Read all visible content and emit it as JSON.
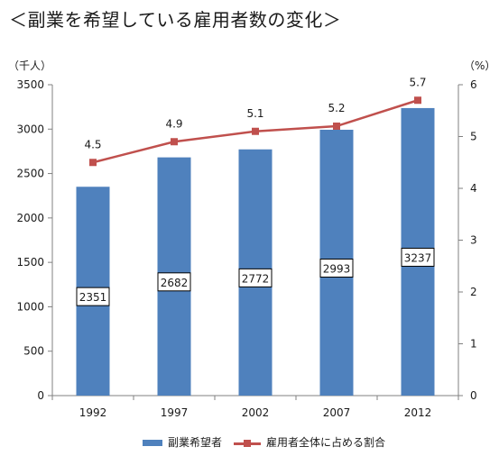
{
  "title": "＜副業を希望している雇用者数の変化＞",
  "left_unit": "（千人）",
  "right_unit": "（%）",
  "colors": {
    "bar": "#4f81bd",
    "line": "#c0504d",
    "axis": "#808080"
  },
  "chart_data": {
    "type": "bar",
    "categories": [
      "1992",
      "1997",
      "2002",
      "2007",
      "2012"
    ],
    "series": [
      {
        "name": "副業希望者",
        "type": "bar",
        "axis": "left",
        "values": [
          2351,
          2682,
          2772,
          2993,
          3237
        ],
        "labels": [
          "2351",
          "2682",
          "2772",
          "2993",
          "3237"
        ]
      },
      {
        "name": "雇用者全体に占める割合",
        "type": "line",
        "axis": "right",
        "values": [
          4.5,
          4.9,
          5.1,
          5.2,
          5.7
        ],
        "labels": [
          "4.5",
          "4.9",
          "5.1",
          "5.2",
          "5.7"
        ]
      }
    ],
    "y_left": {
      "ylim": [
        0,
        3500
      ],
      "ticks": [
        "0",
        "500",
        "1000",
        "1500",
        "2000",
        "2500",
        "3000",
        "3500"
      ]
    },
    "y_right": {
      "ylim": [
        0,
        6
      ],
      "ticks": [
        "0",
        "1",
        "2",
        "3",
        "4",
        "5",
        "6"
      ]
    },
    "grid": false,
    "legend": "bottom"
  }
}
